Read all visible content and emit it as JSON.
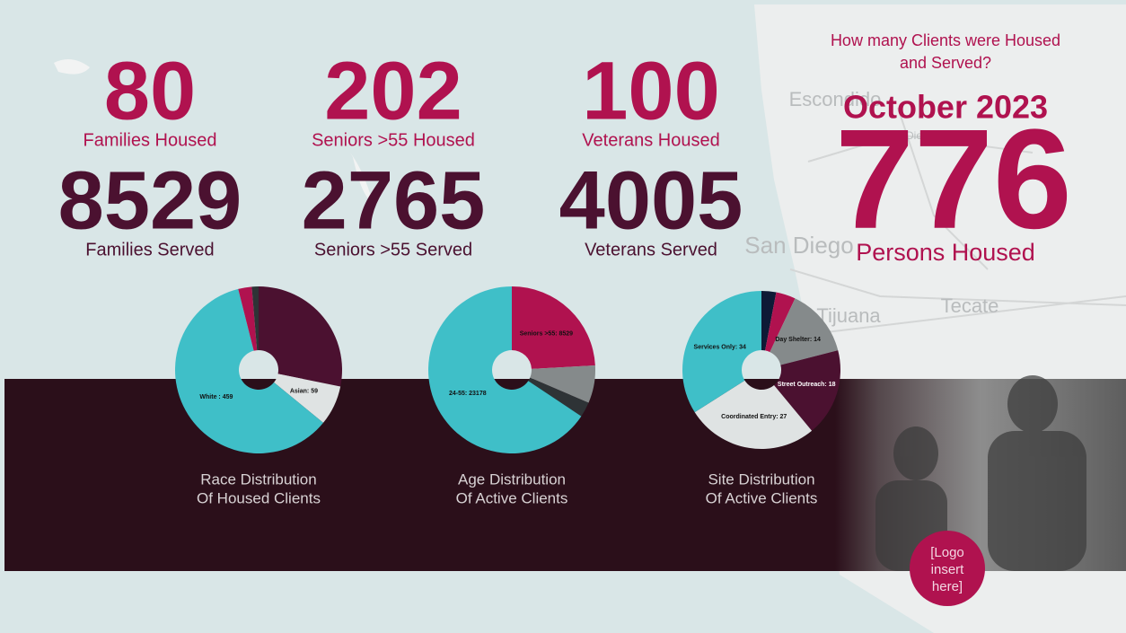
{
  "stats": [
    {
      "value": "80",
      "label": "Families Housed",
      "kind": "housed"
    },
    {
      "value": "202",
      "label": "Seniors >55 Housed",
      "kind": "housed"
    },
    {
      "value": "100",
      "label": "Veterans Housed",
      "kind": "housed"
    },
    {
      "value": "8529",
      "label": "Families Served",
      "kind": "served"
    },
    {
      "value": "2765",
      "label": "Seniors >55 Served",
      "kind": "served"
    },
    {
      "value": "4005",
      "label": "Veterans Served",
      "kind": "served"
    }
  ],
  "headline": {
    "question": [
      "How many Clients were Housed",
      "and Served?"
    ],
    "period": "October 2023",
    "total": "776",
    "total_label": "Persons Housed"
  },
  "map_labels": [
    "Escondido",
    "San Diego",
    "Tijuana",
    "Tecate",
    "San Diego-Chula"
  ],
  "logo": [
    "[Logo",
    "insert",
    "here]"
  ],
  "chart_data": [
    {
      "type": "pie",
      "title": [
        "Race Distribution",
        "Of Housed Clients"
      ],
      "values": [
        215,
        59,
        459,
        20,
        10
      ],
      "value_labels": [
        null,
        "Asian: 59",
        "White : 459",
        null,
        null
      ],
      "colors": [
        "#4b1130",
        "#dfe3e3",
        "#3fbfc8",
        "#b0124f",
        "#2e3336"
      ]
    },
    {
      "type": "pie",
      "title": [
        "Age Distribution",
        "Of Active Clients"
      ],
      "values": [
        8529,
        2575,
        1030,
        23178
      ],
      "value_labels": [
        "Seniors >55: 8529",
        null,
        null,
        "24-55: 23178"
      ],
      "colors": [
        "#b0124f",
        "#858a8b",
        "#2e3336",
        "#3fbfc8"
      ]
    },
    {
      "type": "pie",
      "title": [
        "Site Distribution",
        "Of Active Clients"
      ],
      "values": [
        3,
        4,
        14,
        18,
        27,
        34
      ],
      "value_labels": [
        null,
        null,
        "Day Shelter: 14",
        "Street Outreach: 18",
        "Coordinated Entry: 27",
        "Services Only: 34"
      ],
      "colors": [
        "#0e1a36",
        "#b0124f",
        "#858a8b",
        "#4b1130",
        "#dfe3e3",
        "#3fbfc8"
      ]
    }
  ]
}
